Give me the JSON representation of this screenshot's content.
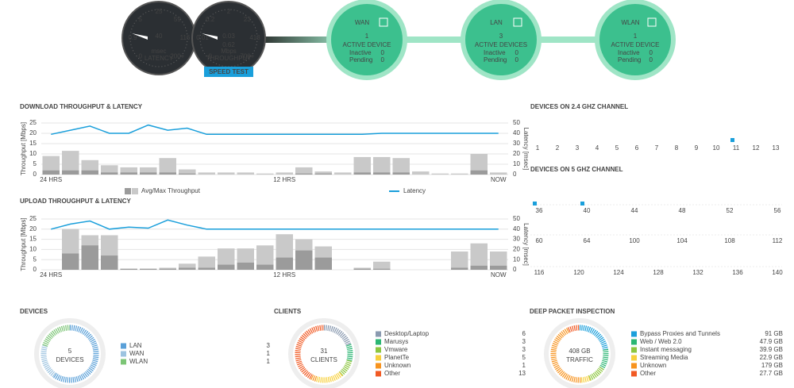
{
  "header": {
    "latency": {
      "value": "40",
      "unit": "msec",
      "label": "LATENCY",
      "scale": [
        "0",
        "0.9",
        "5",
        "25",
        "59",
        "116",
        "200+"
      ]
    },
    "throughput": {
      "value": "0.03",
      "secondary": "0.62",
      "unit": "Mbps",
      "label": "THROUGHPUT",
      "scale": [
        "0",
        "0.01",
        "0.2",
        "2",
        "23",
        "413",
        "700+"
      ]
    },
    "speed_test": "SPEED TEST",
    "networks": [
      {
        "name": "WAN",
        "count": "1",
        "status": "ACTIVE DEVICE",
        "inactive_label": "Inactive",
        "inactive": "0",
        "pending_label": "Pending",
        "pending": "0"
      },
      {
        "name": "LAN",
        "count": "3",
        "status": "ACTIVE DEVICES",
        "inactive_label": "Inactive",
        "inactive": "0",
        "pending_label": "Pending",
        "pending": "0"
      },
      {
        "name": "WLAN",
        "count": "1",
        "status": "ACTIVE DEVICE",
        "inactive_label": "Inactive",
        "inactive": "0",
        "pending_label": "Pending",
        "pending": "0"
      }
    ]
  },
  "download": {
    "type": "bar",
    "title": "DOWNLOAD THROUGHPUT & LATENCY",
    "y_label": "Throughput [Mbps]",
    "y2_label": "Latency [msec]",
    "categories": [
      "24 HRS",
      null,
      null,
      null,
      null,
      null,
      null,
      null,
      null,
      null,
      null,
      null,
      "12 HRS",
      null,
      null,
      null,
      null,
      null,
      null,
      null,
      null,
      null,
      null,
      "NOW"
    ],
    "ylim": [
      0,
      25
    ],
    "yticks": [
      0,
      5,
      10,
      15,
      20,
      25
    ],
    "y2lim": [
      0,
      50
    ],
    "y2ticks": [
      0,
      10,
      20,
      30,
      40,
      50
    ],
    "series": [
      {
        "name": "Avg/Max Throughput",
        "max_color": "#c9c9c9",
        "avg_color": "#9b9b9b",
        "max": [
          9,
          11.5,
          7,
          4.5,
          3.5,
          3.5,
          8,
          2.5,
          1,
          1,
          1,
          0.5,
          1,
          3.5,
          1.5,
          1,
          8.5,
          8.5,
          8,
          1.5,
          0.5,
          0.5,
          10,
          1
        ],
        "avg": [
          2,
          2,
          2,
          1,
          1,
          1,
          1,
          0.5,
          0,
          0,
          0,
          0,
          0,
          0.5,
          0.5,
          0,
          1,
          1,
          1,
          0,
          0,
          0,
          2,
          0
        ]
      },
      {
        "name": "Latency",
        "color": "#1a9fdb",
        "axis": "y2",
        "values": [
          39,
          43,
          47,
          40,
          40,
          48,
          43,
          45,
          39,
          39,
          39,
          39,
          39,
          39,
          39,
          39,
          39,
          40,
          40,
          40,
          40,
          40,
          40,
          40
        ]
      }
    ]
  },
  "upload": {
    "type": "bar",
    "title": "UPLOAD THROUGHPUT & LATENCY",
    "y_label": "Throughput [Mbps]",
    "y2_label": "Latency [msec]",
    "categories": [
      "24 HRS",
      null,
      null,
      null,
      null,
      null,
      null,
      null,
      null,
      null,
      null,
      null,
      "12 HRS",
      null,
      null,
      null,
      null,
      null,
      null,
      null,
      null,
      null,
      null,
      "NOW"
    ],
    "ylim": [
      0,
      25
    ],
    "yticks": [
      0,
      5,
      10,
      15,
      20,
      25
    ],
    "y2lim": [
      0,
      50
    ],
    "y2ticks": [
      0,
      10,
      20,
      30,
      40,
      50
    ],
    "series": [
      {
        "max_color": "#c9c9c9",
        "avg_color": "#9b9b9b",
        "max": [
          0,
          20,
          17,
          17,
          0.5,
          0.5,
          1,
          3,
          6.5,
          10.5,
          10.5,
          12,
          17.5,
          15,
          11.5,
          0,
          1,
          4,
          0,
          0,
          0,
          9,
          13,
          9
        ],
        "avg": [
          0,
          8,
          12,
          7,
          0.5,
          0.5,
          0.5,
          1,
          1,
          2.5,
          3.5,
          2.5,
          6,
          9.5,
          6,
          0,
          0.5,
          0.5,
          0,
          0,
          0,
          1,
          2,
          2
        ]
      },
      {
        "color": "#1a9fdb",
        "axis": "y2",
        "values": [
          40,
          45,
          48,
          40,
          42,
          41,
          49,
          44,
          40,
          40,
          40,
          40,
          40,
          40,
          40,
          40,
          40,
          40,
          40,
          40,
          40,
          40,
          40,
          40
        ]
      }
    ]
  },
  "channels_24": {
    "title": "DEVICES ON 2.4 GHZ CHANNEL",
    "channels": [
      1,
      2,
      3,
      4,
      5,
      6,
      7,
      8,
      9,
      10,
      11,
      12,
      13
    ],
    "devices": [
      11
    ],
    "color": "#1a9fdb"
  },
  "channels_5": {
    "title": "DEVICES ON 5 GHZ CHANNEL",
    "rows": [
      [
        36,
        40,
        44,
        48,
        52,
        56
      ],
      [
        60,
        64,
        100,
        104,
        108,
        112
      ],
      [
        116,
        120,
        124,
        128,
        132,
        136,
        140
      ]
    ],
    "devices": [
      36,
      40
    ],
    "color": "#1a9fdb"
  },
  "devices_summary": {
    "title": "DEVICES",
    "total": "5",
    "total_label": "DEVICES",
    "items": [
      {
        "name": "LAN",
        "value": 3,
        "color": "#5aa0d8"
      },
      {
        "name": "WAN",
        "value": 1,
        "color": "#9cc3e0"
      },
      {
        "name": "WLAN",
        "value": 1,
        "color": "#7cc576"
      }
    ]
  },
  "clients_summary": {
    "title": "CLIENTS",
    "total": "31",
    "total_label": "CLIENTS",
    "items": [
      {
        "name": "Desktop/Laptop",
        "value": 6,
        "color": "#8a9ab0"
      },
      {
        "name": "Marusys",
        "value": 3,
        "color": "#2bb673"
      },
      {
        "name": "Vmware",
        "value": 3,
        "color": "#8dc63f"
      },
      {
        "name": "PlanetTe",
        "value": 5,
        "color": "#f7d03c"
      },
      {
        "name": "Unknown",
        "value": 1,
        "color": "#f7931e"
      },
      {
        "name": "Other",
        "value": 13,
        "color": "#f15a24"
      }
    ]
  },
  "dpi_summary": {
    "title": "DEEP PACKET INSPECTION",
    "total": "408 GB",
    "total_label": "TRAFFIC",
    "items": [
      {
        "name": "Bypass Proxies and Tunnels",
        "value": 91,
        "label": "91 GB",
        "color": "#1a9fdb"
      },
      {
        "name": "Web / Web 2.0",
        "value": 47.9,
        "label": "47.9 GB",
        "color": "#2bb673"
      },
      {
        "name": "Instant messaging",
        "value": 39.9,
        "label": "39.9 GB",
        "color": "#8dc63f"
      },
      {
        "name": "Streaming Media",
        "value": 22.9,
        "label": "22.9 GB",
        "color": "#f7d03c"
      },
      {
        "name": "Unknown",
        "value": 179,
        "label": "179 GB",
        "color": "#f7931e"
      },
      {
        "name": "Other",
        "value": 27.7,
        "label": "27.7 GB",
        "color": "#f15a24"
      }
    ]
  }
}
